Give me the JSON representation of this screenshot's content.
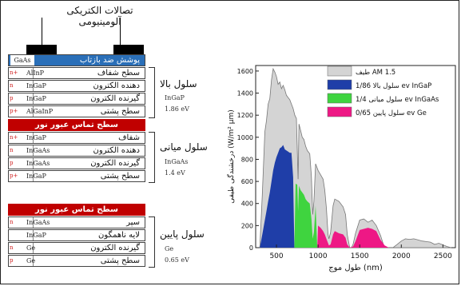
{
  "diagram": {
    "contacts_label": "تصالات الکتریکی آلومینیومی",
    "arc_label": "پوشش ضد بازتاب",
    "arc_material": "GaAs",
    "tunnel_label": "سطح تماس عبور نور",
    "top_cell": {
      "name": "سلول بالا",
      "material": "InGaP",
      "bandgap": "1.86 eV",
      "layers": [
        {
          "doping": "n+",
          "material": "AlInP",
          "label": "سطح شفاف"
        },
        {
          "doping": "n",
          "material": "InGaP",
          "label": "دهنده الکترون"
        },
        {
          "doping": "p",
          "material": "InGaP",
          "label": "گیرنده الکترون"
        },
        {
          "doping": "p+",
          "material": "AlGaInP",
          "label": "سطح پشتی"
        }
      ]
    },
    "middle_cell": {
      "name": "سلول میانی",
      "material": "InGaAs",
      "bandgap": "1.4 eV",
      "layers": [
        {
          "doping": "n+",
          "material": "InGaP",
          "label": "شفاف"
        },
        {
          "doping": "n",
          "material": "InGaAs",
          "label": "دهنده الکترون"
        },
        {
          "doping": "p",
          "material": "InGaAs",
          "label": "گیرنده الکترون"
        },
        {
          "doping": "p+",
          "material": "InGaP",
          "label": "سطح پشتی"
        }
      ]
    },
    "bottom_cell": {
      "name": "سلول پایین",
      "material": "Ge",
      "bandgap": "0.65 eV",
      "layers": [
        {
          "doping": "n",
          "material": "InGaAs",
          "label": "سپر"
        },
        {
          "doping": "",
          "material": "InGaP",
          "label": "لایه ناهمگون"
        },
        {
          "doping": "n",
          "material": "Ge",
          "label": "گیرنده الکترون"
        },
        {
          "doping": "p",
          "material": "Ge",
          "label": "سطح پشتی"
        }
      ]
    }
  },
  "colors": {
    "arc": "#2a6fb8",
    "tunnel": "#c00000",
    "am15": "#d4d4d4",
    "top": "#1f3ea8",
    "middle": "#3fd43f",
    "bottom": "#ee1885"
  },
  "chart_data": {
    "type": "area",
    "xlabel": "طول موج (nm)",
    "ylabel": "درخشندگی طیفی (W/m² µm)",
    "xlim": [
      250,
      2650
    ],
    "ylim": [
      0,
      1650
    ],
    "xticks": [
      "500",
      "1000",
      "1500",
      "2000",
      "2500"
    ],
    "xtick_values": [
      500,
      1000,
      1500,
      2000,
      2500
    ],
    "yticks": [
      "0",
      "200",
      "400",
      "600",
      "800",
      "1000",
      "1200",
      "1400",
      "1600"
    ],
    "ytick_values": [
      0,
      200,
      400,
      600,
      800,
      1000,
      1200,
      1400,
      1600
    ],
    "legend": [
      {
        "label": "طیف AM 1.5",
        "color_key": "am15"
      },
      {
        "label": "سلول بالا 1/86 ev InGaP",
        "color_key": "top"
      },
      {
        "label": "سلول میانی 1/4 ev InGaAs",
        "color_key": "middle"
      },
      {
        "label": "سلول پایین 0/65 ev Ge",
        "color_key": "bottom"
      }
    ],
    "series": [
      {
        "name": "طیف AM 1.5",
        "color_key": "am15",
        "x": [
          300,
          330,
          360,
          380,
          400,
          420,
          440,
          460,
          480,
          500,
          520,
          540,
          560,
          580,
          600,
          620,
          640,
          660,
          680,
          700,
          720,
          740,
          760,
          770,
          790,
          810,
          830,
          850,
          870,
          900,
          920,
          935,
          950,
          970,
          1000,
          1030,
          1060,
          1080,
          1100,
          1120,
          1130,
          1150,
          1180,
          1200,
          1250,
          1300,
          1330,
          1350,
          1380,
          1400,
          1420,
          1450,
          1500,
          1550,
          1600,
          1650,
          1700,
          1750,
          1780,
          1800,
          1850,
          1900,
          1950,
          2000,
          2050,
          2100,
          2150,
          2200,
          2250,
          2300,
          2350,
          2400,
          2450,
          2500,
          2550,
          2600
        ],
        "y": [
          0,
          480,
          1050,
          1150,
          1300,
          1350,
          1520,
          1620,
          1590,
          1550,
          1480,
          1500,
          1440,
          1470,
          1430,
          1380,
          1360,
          1340,
          1300,
          1260,
          1200,
          1170,
          620,
          1120,
          1060,
          1000,
          980,
          920,
          880,
          850,
          640,
          300,
          420,
          760,
          700,
          660,
          620,
          520,
          360,
          120,
          80,
          140,
          380,
          440,
          420,
          370,
          300,
          120,
          0,
          0,
          30,
          130,
          250,
          260,
          230,
          250,
          200,
          110,
          40,
          0,
          0,
          0,
          30,
          60,
          80,
          75,
          80,
          70,
          60,
          55,
          50,
          30,
          40,
          25,
          10,
          0
        ]
      },
      {
        "name": "سلول بالا 1/86 ev InGaP",
        "color_key": "top",
        "x": [
          300,
          330,
          360,
          380,
          400,
          420,
          440,
          460,
          480,
          500,
          520,
          540,
          560,
          580,
          600,
          620,
          640,
          660,
          680,
          700,
          715
        ],
        "y": [
          0,
          120,
          250,
          330,
          420,
          500,
          600,
          700,
          770,
          820,
          860,
          900,
          910,
          930,
          890,
          880,
          870,
          860,
          860,
          640,
          0
        ]
      },
      {
        "name": "سلول میانی 1/4 ev InGaAs",
        "color_key": "middle",
        "x": [
          715,
          730,
          750,
          760,
          770,
          790,
          810,
          830,
          850,
          870,
          900,
          920,
          935,
          950,
          970,
          990
        ],
        "y": [
          0,
          580,
          570,
          330,
          560,
          520,
          500,
          480,
          440,
          420,
          400,
          260,
          80,
          140,
          380,
          0
        ]
      },
      {
        "name": "سلول پایین 0/65 ev Ge",
        "color_key": "bottom",
        "x": [
          990,
          1000,
          1030,
          1060,
          1080,
          1100,
          1130,
          1150,
          1180,
          1200,
          1250,
          1300,
          1330,
          1350,
          1380,
          1420,
          1450,
          1500,
          1550,
          1600,
          1650,
          1700,
          1750,
          1800,
          1850
        ],
        "y": [
          0,
          200,
          180,
          150,
          120,
          80,
          20,
          30,
          120,
          150,
          130,
          120,
          90,
          30,
          0,
          10,
          60,
          160,
          170,
          180,
          170,
          150,
          70,
          20,
          0
        ]
      }
    ]
  }
}
